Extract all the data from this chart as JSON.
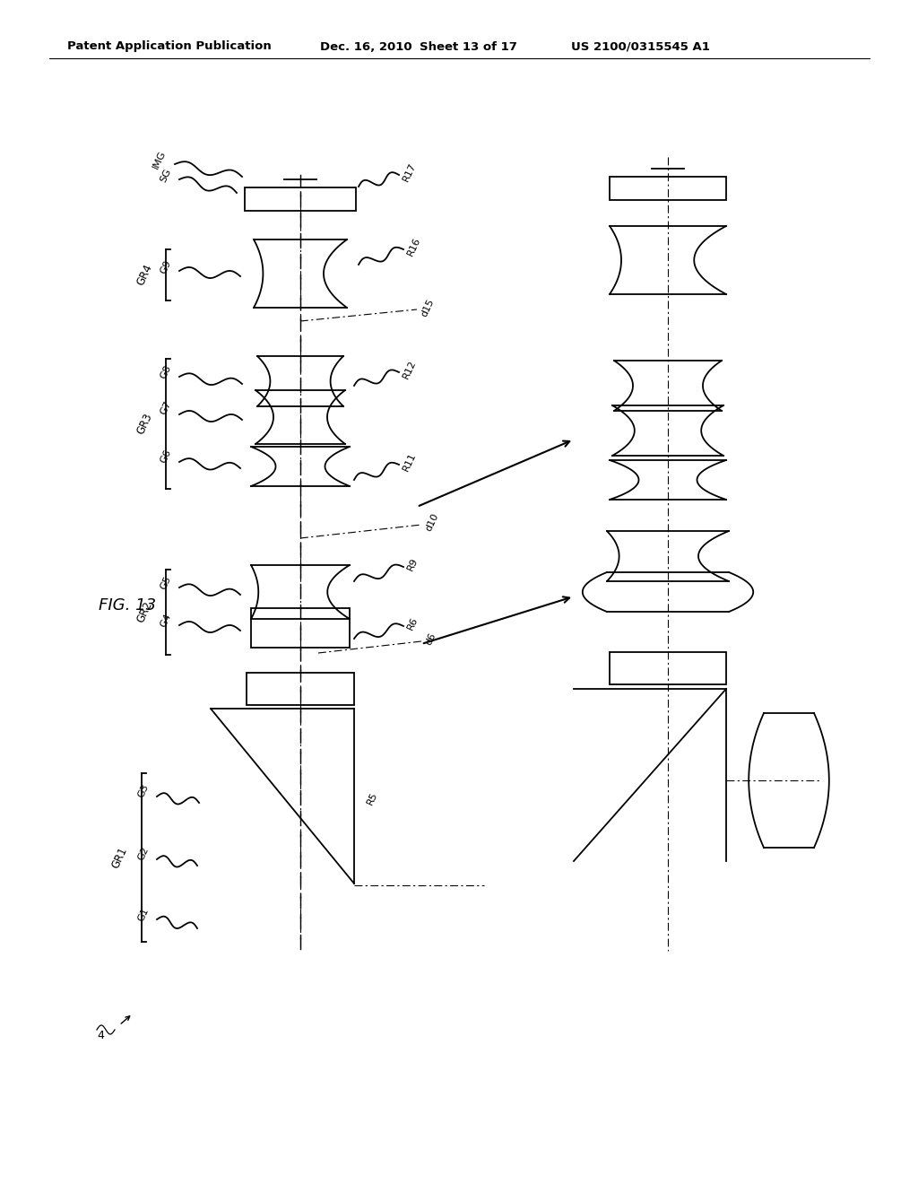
{
  "bg_color": "#ffffff",
  "line_color": "#000000",
  "header_text": "Patent Application Publication",
  "header_date": "Dec. 16, 2010",
  "header_sheet": "Sheet 13 of 17",
  "header_patent": "US 2100/0315545 A1",
  "fig_label": "FIG. 13",
  "fig_number": "4"
}
